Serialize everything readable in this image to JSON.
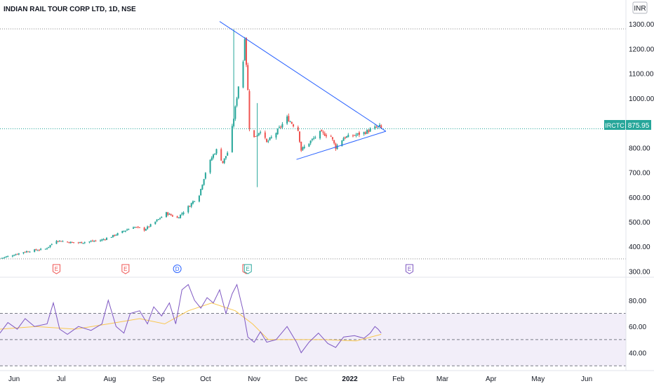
{
  "header": {
    "title": "INDIAN RAIL TOUR CORP LTD, 1D, NSE",
    "currency": "INR"
  },
  "price_label": {
    "symbol": "IRCTC",
    "value": "875.95"
  },
  "colors": {
    "up": "#26a69a",
    "down": "#ef5350",
    "trendline": "#2962ff",
    "rsi_line": "#7e57c2",
    "rsi_ma": "#f9c74f",
    "rsi_band": "#ede7f6",
    "grid_dotted": "#888888",
    "price_line": "#26a69a"
  },
  "chart_data": [
    {
      "type": "candlestick",
      "name": "price",
      "ylim": [
        290,
        1340
      ],
      "y_ticks": [
        300,
        400,
        500,
        600,
        700,
        800,
        900,
        1000,
        1100,
        1200,
        1300
      ],
      "y_tick_labels": [
        "300.00",
        "400.00",
        "500.00",
        "600.00",
        "700.00",
        "800.00",
        "900.00",
        "1000.00",
        "1100.00",
        "1200.00",
        "1300.00"
      ],
      "x_ticks": [
        "2021-06-01",
        "2021-07-01",
        "2021-08-01",
        "2021-09-01",
        "2021-10-01",
        "2021-11-01",
        "2021-12-01",
        "2022-01-01",
        "2022-02-01",
        "2022-03-01",
        "2022-04-01",
        "2022-05-01",
        "2022-06-01"
      ],
      "x_tick_labels": [
        "Jun",
        "Jul",
        "Aug",
        "Sep",
        "Oct",
        "Nov",
        "Dec",
        "2022",
        "Feb",
        "Mar",
        "Apr",
        "May",
        "Jun"
      ],
      "x_range": [
        "2021-05-23",
        "2022-06-26"
      ],
      "last_price": 875.95,
      "horizontal_levels": [
        1280,
        350
      ],
      "trendlines": [
        {
          "from": [
            "2021-10-10",
            1310
          ],
          "to": [
            "2022-01-24",
            866
          ]
        },
        {
          "from": [
            "2021-11-28",
            752
          ],
          "to": [
            "2022-01-24",
            866
          ]
        }
      ],
      "event_markers": [
        {
          "date": "2021-06-28",
          "label": "E",
          "kind": "earnings-red"
        },
        {
          "date": "2021-08-11",
          "label": "E",
          "kind": "earnings-red"
        },
        {
          "date": "2021-09-13",
          "label": "D",
          "kind": "dividend"
        },
        {
          "date": "2021-10-27",
          "label": "E",
          "kind": "earnings-red"
        },
        {
          "date": "2021-10-28",
          "label": "E",
          "kind": "earnings-green"
        },
        {
          "date": "2022-02-08",
          "label": "E",
          "kind": "earnings-future"
        }
      ],
      "anchors": [
        [
          "2021-05-23",
          352
        ],
        [
          "2021-05-31",
          365
        ],
        [
          "2021-06-07",
          378
        ],
        [
          "2021-06-14",
          385
        ],
        [
          "2021-06-21",
          390
        ],
        [
          "2021-06-28",
          425
        ],
        [
          "2021-07-05",
          418
        ],
        [
          "2021-07-12",
          415
        ],
        [
          "2021-07-19",
          420
        ],
        [
          "2021-07-26",
          425
        ],
        [
          "2021-08-02",
          440
        ],
        [
          "2021-08-09",
          460
        ],
        [
          "2021-08-16",
          480
        ],
        [
          "2021-08-23",
          468
        ],
        [
          "2021-08-30",
          500
        ],
        [
          "2021-09-06",
          535
        ],
        [
          "2021-09-13",
          515
        ],
        [
          "2021-09-20",
          560
        ],
        [
          "2021-09-27",
          610
        ],
        [
          "2021-10-01",
          700
        ],
        [
          "2021-10-05",
          760
        ],
        [
          "2021-10-08",
          790
        ],
        [
          "2021-10-12",
          740
        ],
        [
          "2021-10-15",
          780
        ],
        [
          "2021-10-18",
          880
        ],
        [
          "2021-10-20",
          960
        ],
        [
          "2021-10-22",
          1050
        ],
        [
          "2021-10-25",
          1150
        ],
        [
          "2021-10-26",
          1250
        ],
        [
          "2021-10-28",
          1030
        ],
        [
          "2021-10-29",
          880
        ],
        [
          "2021-11-01",
          840
        ],
        [
          "2021-11-05",
          870
        ],
        [
          "2021-11-09",
          820
        ],
        [
          "2021-11-15",
          860
        ],
        [
          "2021-11-22",
          920
        ],
        [
          "2021-11-29",
          870
        ],
        [
          "2021-12-01",
          790
        ],
        [
          "2021-12-06",
          820
        ],
        [
          "2021-12-13",
          860
        ],
        [
          "2021-12-20",
          845
        ],
        [
          "2021-12-23",
          800
        ],
        [
          "2021-12-28",
          840
        ],
        [
          "2022-01-04",
          850
        ],
        [
          "2022-01-10",
          860
        ],
        [
          "2022-01-17",
          880
        ],
        [
          "2022-01-20",
          885
        ],
        [
          "2022-01-21",
          876
        ]
      ]
    },
    {
      "type": "line",
      "name": "rsi",
      "ylim": [
        28,
        96
      ],
      "y_ticks": [
        40,
        60,
        80
      ],
      "y_tick_labels": [
        "40.00",
        "60.00",
        "80.00"
      ],
      "bands": [
        70,
        50,
        30
      ],
      "series": [
        {
          "role": "rsi",
          "values": [
            [
              "2021-05-23",
              55
            ],
            [
              "2021-05-28",
              63
            ],
            [
              "2021-06-03",
              58
            ],
            [
              "2021-06-08",
              66
            ],
            [
              "2021-06-14",
              60
            ],
            [
              "2021-06-22",
              62
            ],
            [
              "2021-06-26",
              78
            ],
            [
              "2021-06-30",
              58
            ],
            [
              "2021-07-05",
              54
            ],
            [
              "2021-07-12",
              60
            ],
            [
              "2021-07-20",
              57
            ],
            [
              "2021-07-27",
              62
            ],
            [
              "2021-07-31",
              80
            ],
            [
              "2021-08-05",
              60
            ],
            [
              "2021-08-10",
              55
            ],
            [
              "2021-08-14",
              70
            ],
            [
              "2021-08-20",
              72
            ],
            [
              "2021-08-25",
              62
            ],
            [
              "2021-08-29",
              75
            ],
            [
              "2021-09-03",
              68
            ],
            [
              "2021-09-08",
              78
            ],
            [
              "2021-09-12",
              62
            ],
            [
              "2021-09-16",
              88
            ],
            [
              "2021-09-20",
              92
            ],
            [
              "2021-09-24",
              80
            ],
            [
              "2021-09-28",
              74
            ],
            [
              "2021-10-02",
              82
            ],
            [
              "2021-10-06",
              78
            ],
            [
              "2021-10-10",
              88
            ],
            [
              "2021-10-14",
              70
            ],
            [
              "2021-10-18",
              85
            ],
            [
              "2021-10-21",
              92
            ],
            [
              "2021-10-25",
              72
            ],
            [
              "2021-10-28",
              52
            ],
            [
              "2021-11-01",
              48
            ],
            [
              "2021-11-05",
              56
            ],
            [
              "2021-11-09",
              48
            ],
            [
              "2021-11-15",
              50
            ],
            [
              "2021-11-22",
              60
            ],
            [
              "2021-11-28",
              48
            ],
            [
              "2021-12-01",
              40
            ],
            [
              "2021-12-06",
              48
            ],
            [
              "2021-12-12",
              55
            ],
            [
              "2021-12-18",
              47
            ],
            [
              "2021-12-23",
              44
            ],
            [
              "2021-12-28",
              52
            ],
            [
              "2022-01-04",
              53
            ],
            [
              "2022-01-10",
              51
            ],
            [
              "2022-01-14",
              55
            ],
            [
              "2022-01-17",
              60
            ],
            [
              "2022-01-19",
              58
            ],
            [
              "2022-01-21",
              55
            ]
          ]
        },
        {
          "role": "rsi-ma",
          "values": [
            [
              "2021-05-23",
              58
            ],
            [
              "2021-06-15",
              60
            ],
            [
              "2021-07-10",
              58
            ],
            [
              "2021-07-31",
              62
            ],
            [
              "2021-08-20",
              66
            ],
            [
              "2021-09-05",
              62
            ],
            [
              "2021-09-20",
              72
            ],
            [
              "2021-10-05",
              78
            ],
            [
              "2021-10-20",
              72
            ],
            [
              "2021-10-31",
              62
            ],
            [
              "2021-11-10",
              50
            ],
            [
              "2021-11-30",
              50
            ],
            [
              "2021-12-15",
              50
            ],
            [
              "2022-01-05",
              49
            ],
            [
              "2022-01-21",
              54
            ]
          ]
        }
      ]
    }
  ]
}
